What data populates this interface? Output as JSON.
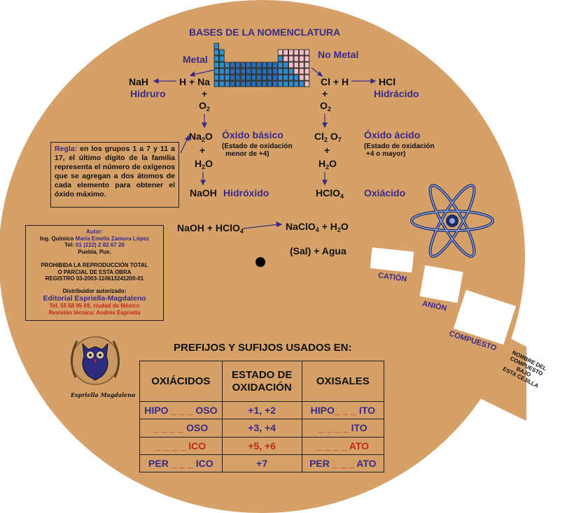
{
  "title": "BASES DE LA NOMENCLATURA",
  "colors": {
    "disc": "#d6a069",
    "purple": "#3a2a86",
    "red": "#c0271a",
    "metal_cells": "#2f8fd0",
    "metal_cells_dark": "#2a6fb3",
    "nonmetal_cells": "#f0c0c8"
  },
  "labels": {
    "metal": "Metal",
    "no_metal": "No Metal",
    "nah": "NaH",
    "h_na": "H + Na",
    "cl_h": "Cl + H",
    "hcl": "HCl",
    "hidruro": "Hidruro",
    "hidracido": "Hidrácido",
    "plus": "+",
    "o2": "O",
    "two": "2",
    "na2o_a": "Na",
    "na2o_b": "O",
    "oxido_basico": "Óxido básico",
    "estado_basico_1": "(Estado de oxidación",
    "estado_basico_2": "menor de +4)",
    "cl2o7_a": "Cl",
    "cl2o7_b": "O",
    "seven": "7",
    "oxido_acido": "Óxido ácido",
    "estado_acido_1": "(Estado de oxidación",
    "estado_acido_2": "+4 o mayor)",
    "h2o_a": "H",
    "h2o_b": "O",
    "naoh": "NaOH",
    "hidroxido": "Hidróxido",
    "hclo4_a": "HClO",
    "four": "4",
    "oxiacido": "Oxiácido",
    "reaction_left": "NaOH + HClO",
    "reaction_right_a": "NaClO",
    "reaction_right_b": "+ H",
    "reaction_right_c": "O",
    "sal_agua": "(Sal) + Agua"
  },
  "note": {
    "label": "Regla:",
    "text": "en los grupos 1 a 7 y 11 a 17, el último dígito de la familia representa el número de oxígenos que se agregan a dos átomos de cada elemento para obtener el óxido máximo."
  },
  "author": {
    "autor_label": "Autor:",
    "name_prefix": "Ing. Químico",
    "name": "María Emelia Zamora López",
    "tel_label": "Tel:",
    "tel": "01 (222) 2 82 67 26",
    "city": "Puebla, Pue.",
    "prohibida_1": "PROHIBIDA LA REPRODUCCIÓN TOTAL",
    "prohibida_2": "O PARCIAL DE ESTA OBRA",
    "registro": "REGISTRO 03-2003-110613241200-01",
    "distribuidor": "Distribuidor autorizado:",
    "editorial": "Editorial Espriella-Magdaleno",
    "tel2": "Tel. 55 58 95 69, ciudad de México",
    "revision": "Revisión técnica: Andrés Espriella"
  },
  "logo_text": "Espriella  Magdaleno",
  "table": {
    "title": "PREFIJOS Y SUFIJOS USADOS EN:",
    "headers": [
      "OXIÁCIDOS",
      "ESTADO DE OXIDACIÓN",
      "OXISALES"
    ],
    "rows": [
      {
        "acid_prefix": "HIPO",
        "acid_blank": "_ _ _",
        "acid_suffix": "OSO",
        "state": "+1, +2",
        "salt_prefix": "HIPO",
        "salt_blank": "_ _ _",
        "salt_suffix": "ITO"
      },
      {
        "acid_prefix": "",
        "acid_blank": "_ _ _ _",
        "acid_suffix": "OSO",
        "state": "+3, +4",
        "salt_prefix": "",
        "salt_blank": "_ _ _ _",
        "salt_suffix": "ITO"
      },
      {
        "acid_prefix": "",
        "acid_blank": "_ _ _ _",
        "acid_suffix": "ICO",
        "state": "+5, +6",
        "salt_prefix": "",
        "salt_blank": "_ _ _ _",
        "salt_suffix": "ATO"
      },
      {
        "acid_prefix": "PER",
        "acid_blank": "_ _ _",
        "acid_suffix": "ICO",
        "state": "+7",
        "salt_prefix": "PER",
        "salt_blank": "_ _ _",
        "salt_suffix": "ATO"
      }
    ]
  },
  "windows": {
    "cation": "CATIÓN",
    "anion": "ANIÓN",
    "compuesto": "COMPUESTO"
  },
  "tab_text": [
    "NOMBRE DEL",
    "COMPUESTO",
    "BAJO",
    "ESTA CEJILLA"
  ],
  "icons": [
    "atom-icon",
    "owl-logo-icon",
    "pivot-hole-icon"
  ]
}
